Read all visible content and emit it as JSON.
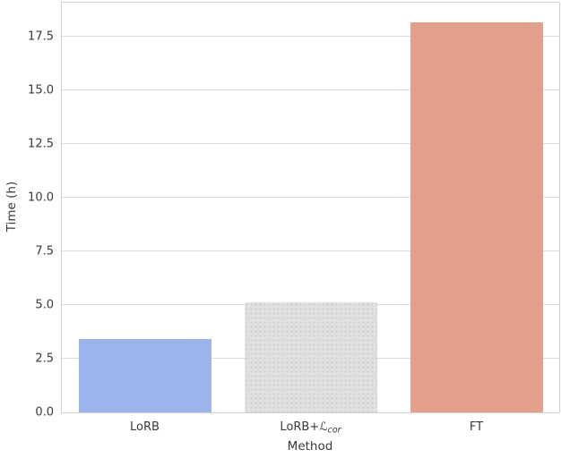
{
  "chart_data": {
    "type": "bar",
    "title": "",
    "xlabel": "Method",
    "ylabel": "Time (h)",
    "categories": [
      "LoRB",
      "LoRB+ℒ_cor",
      "FT"
    ],
    "categories_display": [
      {
        "text": "LoRB"
      },
      {
        "text": "LoRB+",
        "math": "ℒ",
        "sub": "cor"
      },
      {
        "text": "FT"
      }
    ],
    "values": [
      3.4,
      5.15,
      18.2
    ],
    "series": [
      {
        "name": "Time (h)",
        "values": [
          3.4,
          5.15,
          18.2
        ]
      }
    ],
    "bar_ids": [
      "lorb",
      "lorb-lcor",
      "ft"
    ],
    "bar_colors": [
      "#9bb5ec",
      "#e0e0e0",
      "#e2a08c"
    ],
    "bar_textures": [
      "solid",
      "dotted",
      "solid"
    ],
    "yticks": [
      0,
      2.5,
      5,
      7.5,
      10,
      12.5,
      15,
      17.5
    ],
    "ylim": [
      0,
      19.1
    ],
    "grid": "horizontal",
    "legend": "none",
    "background_color": "#ffffff",
    "gridline_color": "#dcdcdc",
    "spine_color": "#cfcfcf",
    "text_color": "#3a3a3a"
  }
}
